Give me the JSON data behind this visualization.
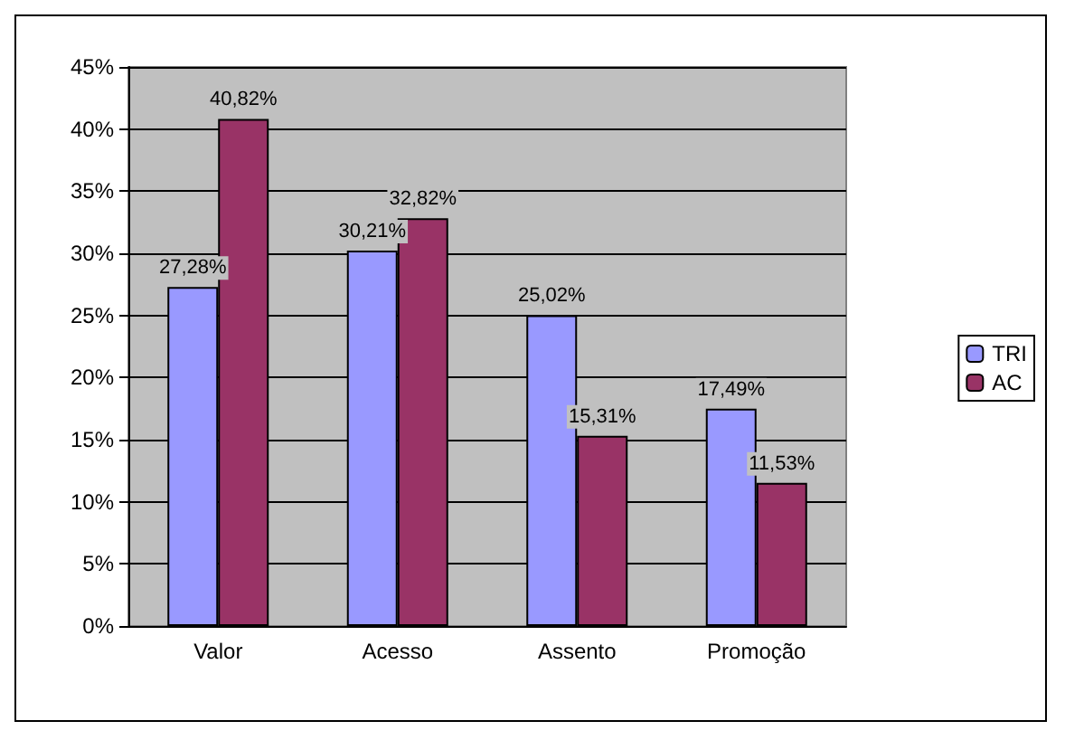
{
  "chart_data": {
    "type": "bar",
    "categories": [
      "Valor",
      "Acesso",
      "Assento",
      "Promoção"
    ],
    "series": [
      {
        "name": "TRI",
        "color": "#9999ff",
        "values": [
          27.28,
          30.21,
          25.02,
          17.49
        ],
        "value_labels": [
          "27,28%",
          "30,21%",
          "25,02%",
          "17,49%"
        ]
      },
      {
        "name": "AC",
        "color": "#993366",
        "values": [
          40.82,
          32.82,
          15.31,
          11.53
        ],
        "value_labels": [
          "40,82%",
          "32,82%",
          "15,31%",
          "11,53%"
        ]
      }
    ],
    "ylim": [
      0,
      45
    ],
    "yticks": [
      {
        "value": 0,
        "label": "0%"
      },
      {
        "value": 5,
        "label": "5%"
      },
      {
        "value": 10,
        "label": "10%"
      },
      {
        "value": 15,
        "label": "15%"
      },
      {
        "value": 20,
        "label": "20%"
      },
      {
        "value": 25,
        "label": "25%"
      },
      {
        "value": 30,
        "label": "30%"
      },
      {
        "value": 35,
        "label": "35%"
      },
      {
        "value": 40,
        "label": "40%"
      },
      {
        "value": 45,
        "label": "45%"
      }
    ],
    "grid": "y",
    "legend": "right"
  }
}
